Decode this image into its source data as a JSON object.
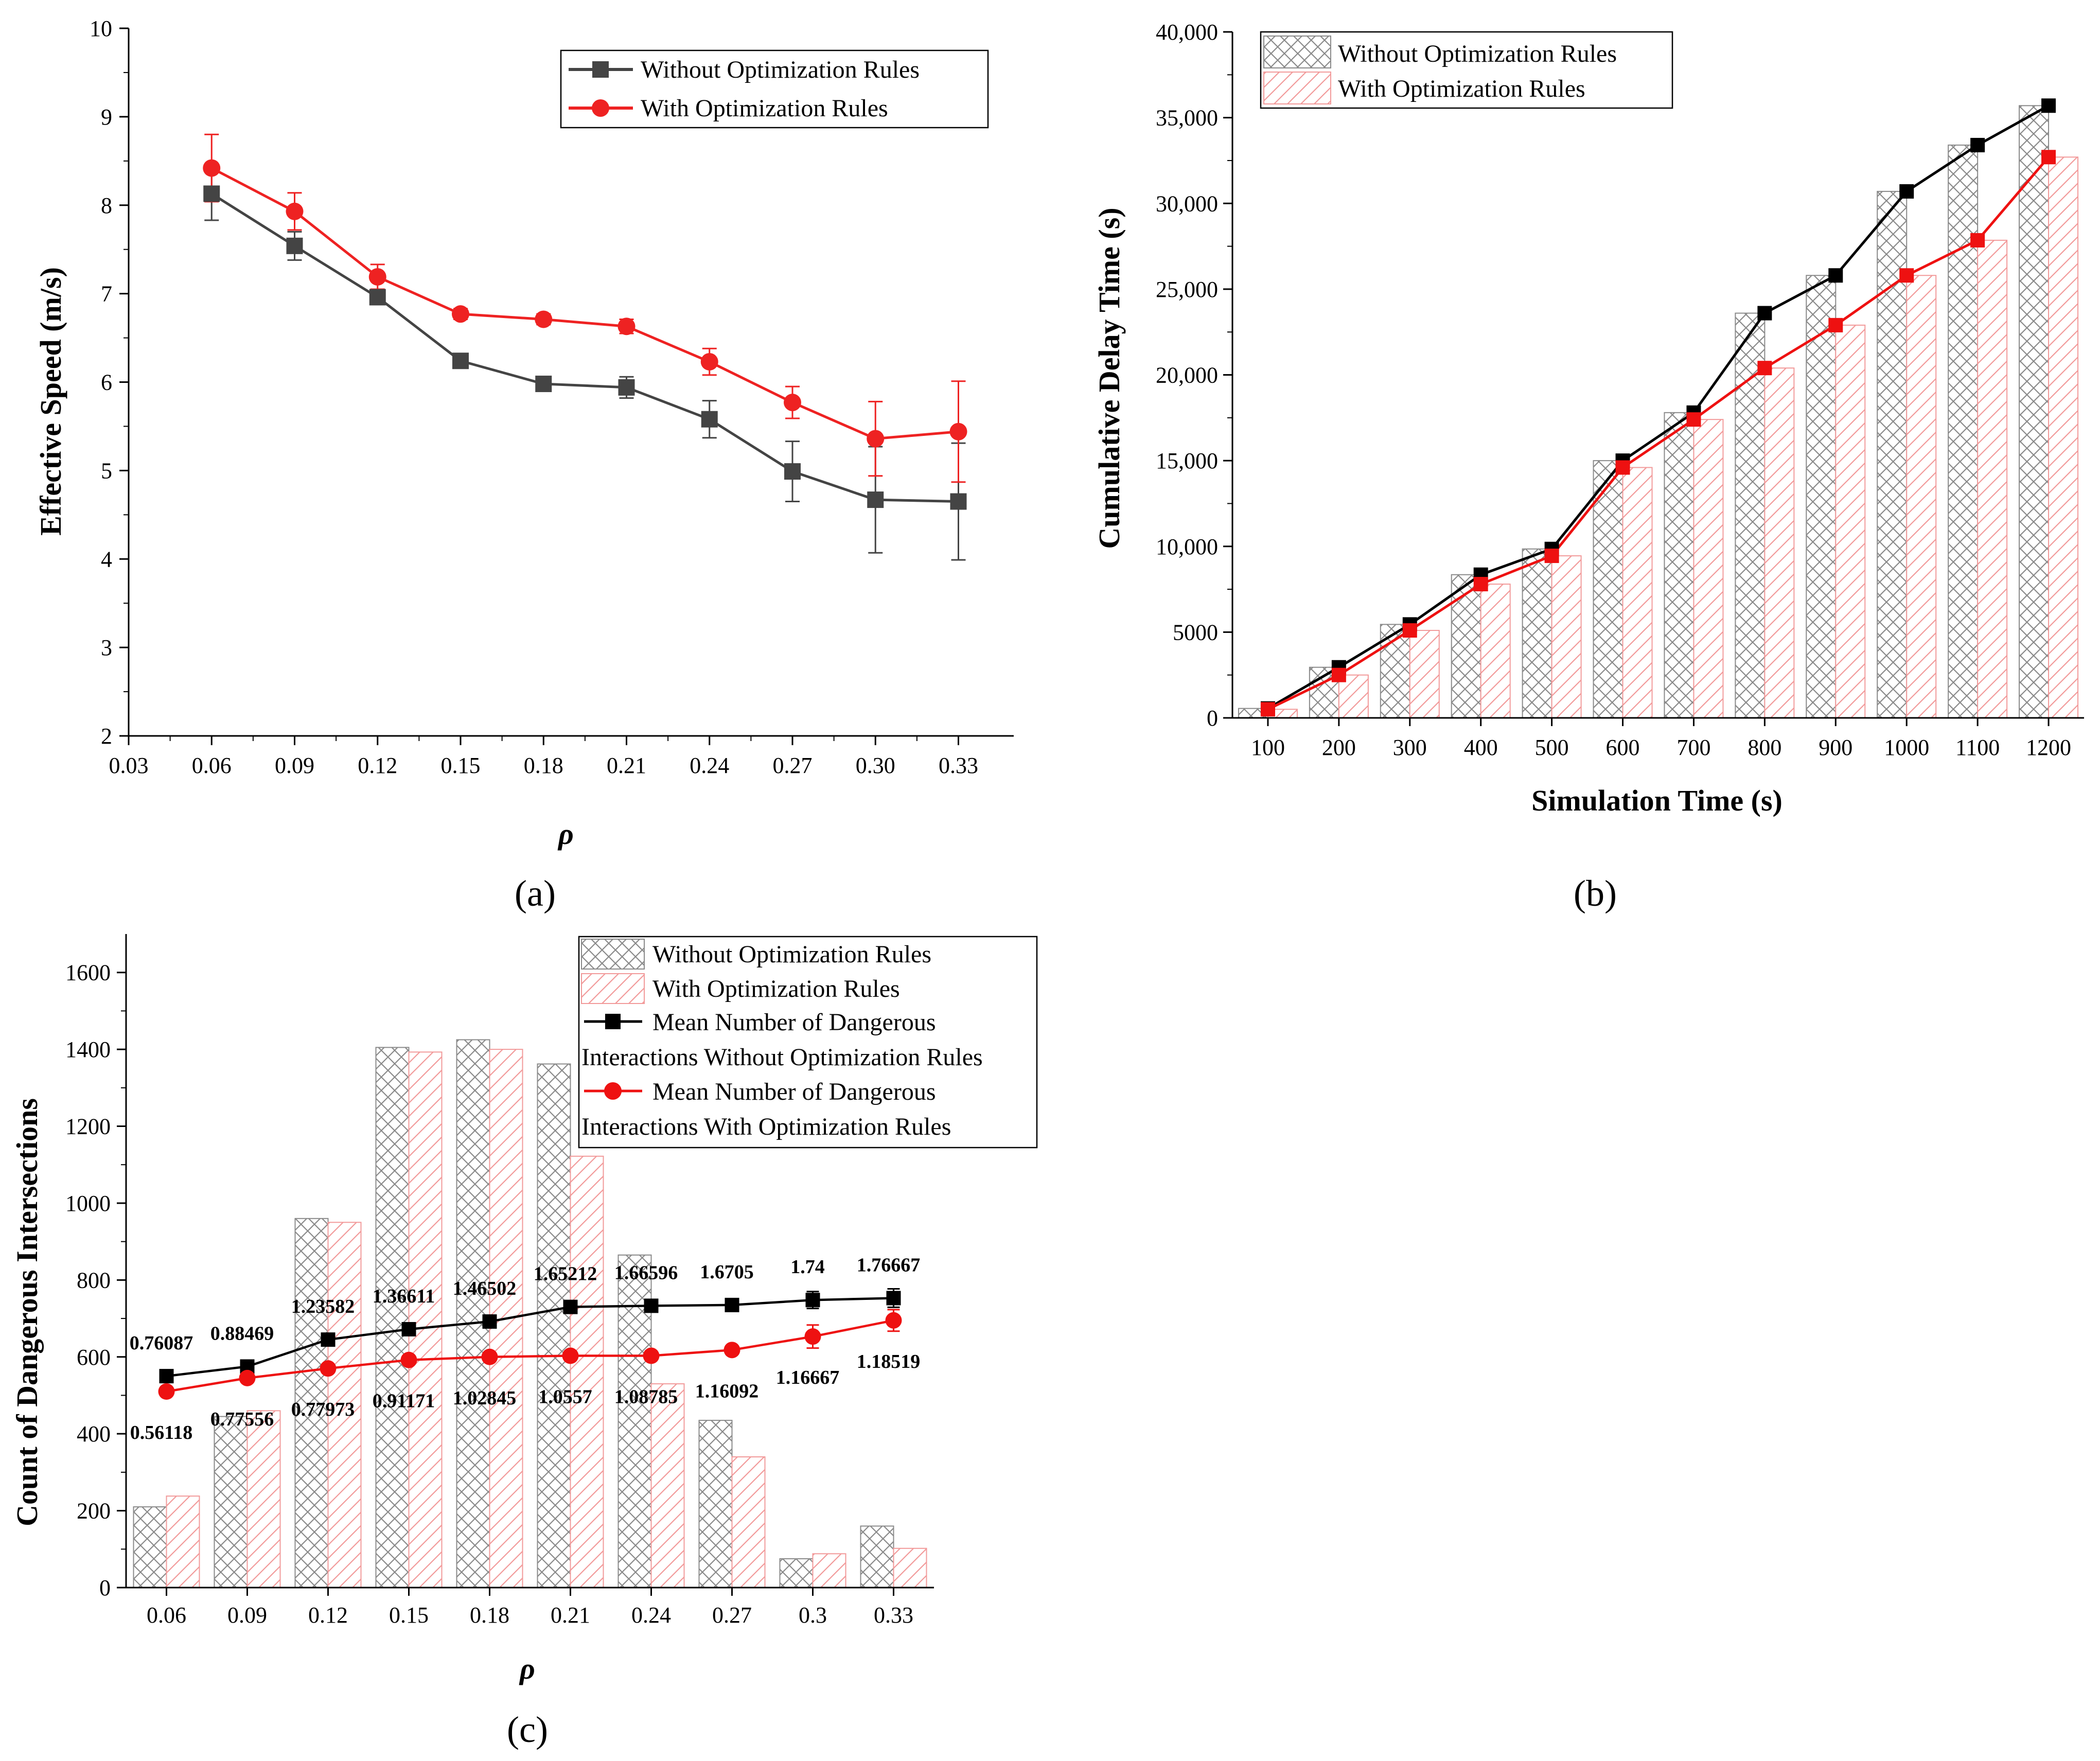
{
  "chart_data": [
    {
      "panel": "(a)",
      "type": "line",
      "title": "",
      "xlabel": "ρ",
      "ylabel": "Effective Speed (m/s)",
      "x_ticks": [
        "0.03",
        "0.06",
        "0.09",
        "0.12",
        "0.15",
        "0.18",
        "0.21",
        "0.24",
        "0.27",
        "0.30",
        "0.33"
      ],
      "y_ticks": [
        "2",
        "3",
        "4",
        "5",
        "6",
        "7",
        "8",
        "9",
        "10"
      ],
      "xlim": [
        0.03,
        0.35
      ],
      "ylim": [
        2,
        10
      ],
      "x": [
        0.06,
        0.09,
        0.12,
        0.15,
        0.18,
        0.21,
        0.24,
        0.27,
        0.3,
        0.33
      ],
      "series": [
        {
          "name": "Without Optimization Rules",
          "color": "#444444",
          "marker": "square",
          "values": [
            8.13,
            7.54,
            6.96,
            6.24,
            5.98,
            5.94,
            5.58,
            4.99,
            4.67,
            4.65
          ],
          "errors": [
            0.3,
            0.16,
            0.06,
            0.06,
            0.07,
            0.12,
            0.21,
            0.34,
            0.6,
            0.66
          ]
        },
        {
          "name": "With Optimization Rules",
          "color": "#ee2222",
          "marker": "circle",
          "values": [
            8.42,
            7.93,
            7.19,
            6.77,
            6.71,
            6.63,
            6.23,
            5.77,
            5.36,
            5.44
          ],
          "errors": [
            0.38,
            0.21,
            0.14,
            0.06,
            0.06,
            0.08,
            0.15,
            0.18,
            0.42,
            0.57
          ]
        }
      ],
      "legend_position": "top-right"
    },
    {
      "panel": "(b)",
      "type": "bar",
      "title": "",
      "xlabel": "Simulation Time (s)",
      "ylabel": "Cumulative Delay Time (s)",
      "categories": [
        "100",
        "200",
        "300",
        "400",
        "500",
        "600",
        "700",
        "800",
        "900",
        "1000",
        "1100",
        "1200"
      ],
      "y_ticks": [
        "0",
        "5000",
        "10,000",
        "15,000",
        "20,000",
        "25,000",
        "30,000",
        "35,000",
        "40,000"
      ],
      "ylim": [
        0,
        40000
      ],
      "series": [
        {
          "name": "Without Optimization Rules",
          "color": "#888888",
          "values": [
            550,
            2950,
            5450,
            8350,
            9850,
            15000,
            17800,
            23600,
            25800,
            30700,
            33400,
            35700
          ]
        },
        {
          "name": "With Optimization Rules",
          "color": "#f29a9a",
          "values": [
            500,
            2500,
            5100,
            7800,
            9450,
            14600,
            17400,
            20400,
            22900,
            25800,
            27850,
            32700
          ]
        }
      ],
      "line_colors": [
        "#000000",
        "#ee1111"
      ],
      "legend_position": "top-left"
    },
    {
      "panel": "(c)",
      "type": "bar",
      "title": "",
      "xlabel": "ρ",
      "ylabel": "Count of Dangerous Intersections",
      "categories": [
        "0.06",
        "0.09",
        "0.12",
        "0.15",
        "0.18",
        "0.21",
        "0.24",
        "0.27",
        "0.3",
        "0.33"
      ],
      "y_ticks": [
        "0",
        "200",
        "400",
        "600",
        "800",
        "1000",
        "1200",
        "1400",
        "1600"
      ],
      "ylim": [
        0,
        1700
      ],
      "series": [
        {
          "name": "Without Optimization Rules",
          "color": "#888888",
          "values": [
            210,
            445,
            960,
            1405,
            1425,
            1362,
            865,
            435,
            75,
            160
          ]
        },
        {
          "name": "With Optimization Rules",
          "color": "#f29a9a",
          "values": [
            238,
            460,
            950,
            1393,
            1400,
            1122,
            530,
            340,
            88,
            102
          ]
        }
      ],
      "lines": [
        {
          "name": "Mean Number of Dangerous Interactions Without Optimization Rules",
          "color": "#000000",
          "marker": "square",
          "plot_values": [
            550,
            575,
            645,
            672,
            692,
            730,
            733,
            735,
            748,
            753
          ],
          "labels": [
            "0.76087",
            "0.88469",
            "1.23582",
            "1.36611",
            "1.46502",
            "1.65212",
            "1.66596",
            "1.6705",
            "1.74",
            "1.76667"
          ]
        },
        {
          "name": "Mean Number of Dangerous Interactions With Optimization Rules",
          "color": "#ee1111",
          "marker": "circle",
          "plot_values": [
            510,
            545,
            570,
            592,
            600,
            603,
            603,
            618,
            653,
            695
          ],
          "labels": [
            "0.56118",
            "0.77556",
            "0.77973",
            "0.91171",
            "1.02845",
            "1.0557",
            "1.08785",
            "1.16092",
            "1.16667",
            "1.18519"
          ]
        }
      ],
      "legend": {
        "items": [
          {
            "text": "Without Optimization Rules"
          },
          {
            "text": "With Optimization Rules"
          },
          {
            "line1": "Mean Number of Dangerous",
            "line2": "Interactions Without Optimization Rules"
          },
          {
            "line1": "Mean Number of Dangerous",
            "line2": "Interactions With Optimization Rules"
          }
        ]
      },
      "legend_position": "top-right"
    }
  ]
}
